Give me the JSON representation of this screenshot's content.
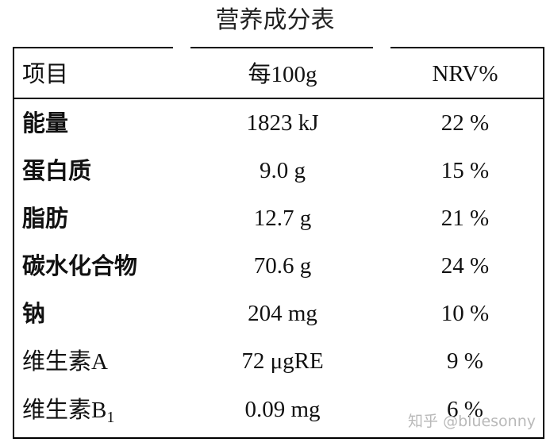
{
  "title": "营养成分表",
  "header": {
    "item": "项目",
    "per100_prefix": "每",
    "per100_suffix": "100g",
    "nrv": "NRV%"
  },
  "rows": [
    {
      "name": "能量",
      "value": "1823 kJ",
      "nrv": "22 %"
    },
    {
      "name": "蛋白质",
      "value": "9.0 g",
      "nrv": "15 %"
    },
    {
      "name": "脂肪",
      "value": "12.7 g",
      "nrv": "21 %"
    },
    {
      "name": "碳水化合物",
      "value": "70.6 g",
      "nrv": "24 %"
    },
    {
      "name": "钠",
      "value": "204 mg",
      "nrv": "10 %"
    },
    {
      "name": "维生素",
      "suffix": "A",
      "value": "72 μgRE",
      "nrv": "9 %"
    },
    {
      "name": "维生素",
      "suffix": "B",
      "subscript": "1",
      "value": "0.09 mg",
      "nrv": "6 %"
    }
  ],
  "watermark": "知乎 @bluesonny"
}
